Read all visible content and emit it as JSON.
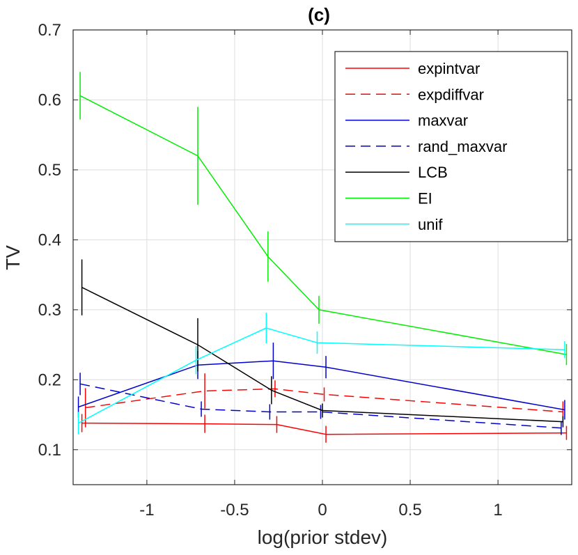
{
  "chart_data": {
    "type": "line",
    "title": "(c)",
    "xlabel": "log(prior stdev)",
    "ylabel": "TV",
    "xlim": [
      -1.42,
      1.42
    ],
    "ylim": [
      0.05,
      0.7
    ],
    "xticks": [
      -1,
      -0.5,
      0,
      0.5,
      1
    ],
    "xtick_labels": [
      "-1",
      "-0.5",
      "0",
      "0.5",
      "1"
    ],
    "yticks": [
      0.1,
      0.2,
      0.3,
      0.4,
      0.5,
      0.6,
      0.7
    ],
    "ytick_labels": [
      "0.1",
      "0.2",
      "0.3",
      "0.4",
      "0.5",
      "0.6",
      "0.7"
    ],
    "grid": true,
    "legend_position": "top-right",
    "series": [
      {
        "name": "expintvar",
        "color": "#ff0000",
        "dash": "solid",
        "x": [
          -1.37,
          -0.67,
          -0.26,
          0.02,
          1.39
        ],
        "y": [
          0.138,
          0.137,
          0.136,
          0.122,
          0.124
        ],
        "err": [
          0.013,
          0.013,
          0.012,
          0.012,
          0.01
        ]
      },
      {
        "name": "expdiffvar",
        "color": "#ff0000",
        "dash": "dashed",
        "x": [
          -1.35,
          -0.67,
          -0.27,
          0.01,
          1.37
        ],
        "y": [
          0.16,
          0.184,
          0.187,
          0.179,
          0.154
        ],
        "err": [
          0.028,
          0.025,
          0.012,
          0.01,
          0.015
        ]
      },
      {
        "name": "maxvar",
        "color": "#0000cc",
        "dash": "solid",
        "x": [
          -1.39,
          -0.71,
          -0.28,
          0.02,
          1.38
        ],
        "y": [
          0.161,
          0.221,
          0.227,
          0.218,
          0.157
        ],
        "err": [
          0.015,
          0.02,
          0.026,
          0.016,
          0.014
        ]
      },
      {
        "name": "rand_maxvar",
        "color": "#0000cc",
        "dash": "dashed",
        "x": [
          -1.38,
          -0.69,
          -0.3,
          -0.01,
          1.36
        ],
        "y": [
          0.194,
          0.158,
          0.154,
          0.154,
          0.131
        ],
        "err": [
          0.016,
          0.011,
          0.011,
          0.01,
          0.01
        ]
      },
      {
        "name": "LCB",
        "color": "#000000",
        "dash": "solid",
        "x": [
          -1.37,
          -0.71,
          -0.29,
          0.0,
          1.37
        ],
        "y": [
          0.332,
          0.25,
          0.185,
          0.156,
          0.14
        ],
        "err": [
          0.04,
          0.038,
          0.02,
          0.01,
          0.008
        ]
      },
      {
        "name": "EI",
        "color": "#00ee00",
        "dash": "solid",
        "x": [
          -1.38,
          -0.71,
          -0.31,
          -0.02,
          1.39
        ],
        "y": [
          0.606,
          0.52,
          0.376,
          0.3,
          0.236
        ],
        "err": [
          0.034,
          0.07,
          0.036,
          0.02,
          0.015
        ]
      },
      {
        "name": "unif",
        "color": "#00ffff",
        "dash": "solid",
        "x": [
          -1.39,
          -0.72,
          -0.32,
          -0.03,
          1.38
        ],
        "y": [
          0.138,
          0.228,
          0.274,
          0.253,
          0.243
        ],
        "err": [
          0.016,
          0.02,
          0.022,
          0.016,
          0.012
        ]
      }
    ]
  }
}
